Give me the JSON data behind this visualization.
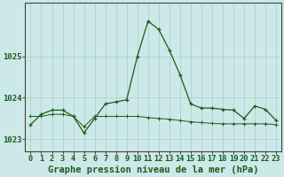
{
  "title": "Graphe pression niveau de la mer (hPa)",
  "bg_color": "#cce8e8",
  "grid_color_major": "#aacccc",
  "grid_color_minor": "#bbdddd",
  "line_color": "#1a5c1a",
  "x_labels": [
    "0",
    "1",
    "2",
    "3",
    "4",
    "5",
    "6",
    "7",
    "8",
    "9",
    "10",
    "11",
    "12",
    "13",
    "14",
    "15",
    "16",
    "17",
    "18",
    "19",
    "20",
    "21",
    "22",
    "23"
  ],
  "hours": [
    0,
    1,
    2,
    3,
    4,
    5,
    6,
    7,
    8,
    9,
    10,
    11,
    12,
    13,
    14,
    15,
    16,
    17,
    18,
    19,
    20,
    21,
    22,
    23
  ],
  "pressure_main": [
    1023.35,
    1023.6,
    1023.7,
    1023.7,
    1023.55,
    1023.15,
    1023.5,
    1023.85,
    1023.9,
    1023.95,
    1025.0,
    1025.85,
    1025.65,
    1025.15,
    1024.55,
    1023.85,
    1023.75,
    1023.75,
    1023.72,
    1023.7,
    1023.5,
    1023.8,
    1023.72,
    1023.45
  ],
  "pressure_flat": [
    1023.55,
    1023.55,
    1023.6,
    1023.6,
    1023.55,
    1023.3,
    1023.55,
    1023.55,
    1023.55,
    1023.55,
    1023.55,
    1023.52,
    1023.5,
    1023.48,
    1023.45,
    1023.42,
    1023.4,
    1023.38,
    1023.37,
    1023.37,
    1023.37,
    1023.37,
    1023.37,
    1023.35
  ],
  "ylim": [
    1022.7,
    1026.3
  ],
  "yticks": [
    1023,
    1024,
    1025
  ],
  "title_fontsize": 7.5,
  "tick_fontsize": 6.0,
  "xlabel_fontsize": 6.2
}
